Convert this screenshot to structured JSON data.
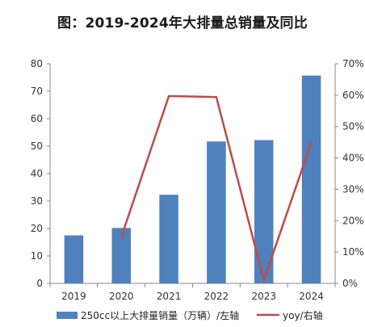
{
  "chart_data": {
    "type": "bar+line",
    "title": "图：2019-2024年大排量总销量及同比",
    "categories": [
      "2019",
      "2020",
      "2021",
      "2022",
      "2023",
      "2024"
    ],
    "series": [
      {
        "name": "250cc以上大排量销量（万辆）/左轴",
        "type": "bar",
        "axis": "left",
        "color": "#4f81bd",
        "values": [
          17.5,
          20.2,
          32.3,
          51.7,
          52.2,
          75.7
        ]
      },
      {
        "name": "yoy/右轴",
        "type": "line",
        "axis": "right",
        "color": "#be4b48",
        "values": [
          null,
          0.148,
          0.597,
          0.594,
          0.01,
          0.45
        ]
      }
    ],
    "y_left": {
      "lim": [
        0,
        80
      ],
      "ticks": [
        "0",
        "10",
        "20",
        "30",
        "40",
        "50",
        "60",
        "70",
        "80"
      ]
    },
    "y_right": {
      "lim": [
        0,
        0.7
      ],
      "ticks": [
        "0%",
        "10%",
        "20%",
        "30%",
        "40%",
        "50%",
        "60%",
        "70%"
      ]
    },
    "grid": false,
    "legend": "bottom"
  }
}
